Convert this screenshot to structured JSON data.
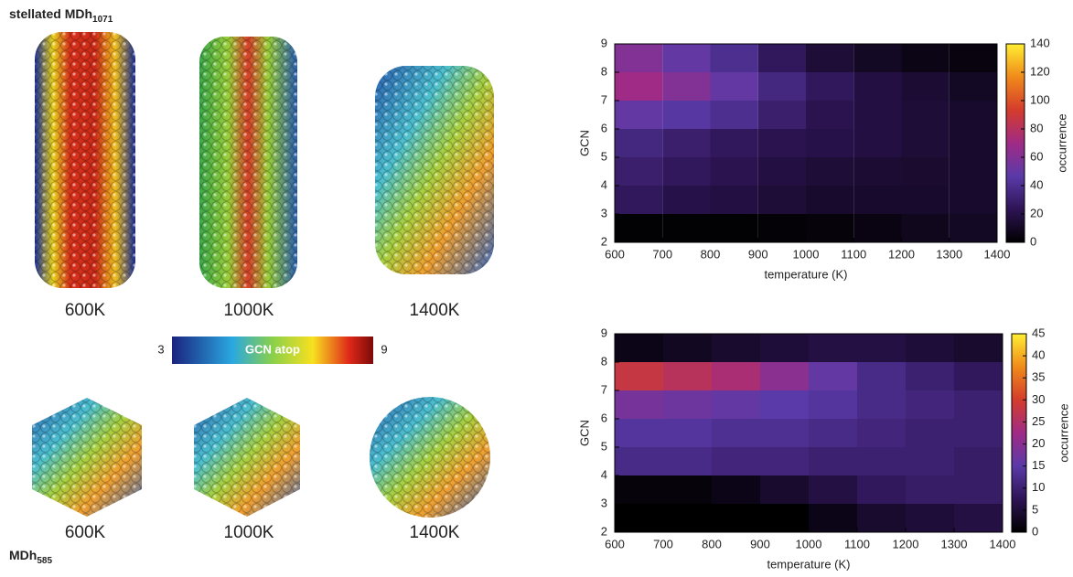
{
  "particles": {
    "top_title": "stellated MDh",
    "top_title_sub": "1071",
    "bottom_title": "MDh",
    "bottom_title_sub": "585",
    "top_labels": [
      "600K",
      "1000K",
      "1400K"
    ],
    "bottom_labels": [
      "600K",
      "1000K",
      "1400K"
    ],
    "scale": {
      "min": "3",
      "label": "GCN atop",
      "max": "9"
    }
  },
  "chart_data": [
    {
      "type": "heatmap",
      "xlabel": "temperature (K)",
      "ylabel": "GCN",
      "colorbar_label": "occurrence",
      "x_bins": [
        600,
        700,
        800,
        900,
        1000,
        1100,
        1200,
        1300,
        1400
      ],
      "y_bins": [
        2,
        3,
        4,
        5,
        6,
        7,
        8,
        9
      ],
      "values": [
        [
          1,
          1,
          1,
          2,
          3,
          5,
          8,
          10
        ],
        [
          25,
          20,
          18,
          15,
          12,
          12,
          12,
          12
        ],
        [
          30,
          25,
          22,
          18,
          15,
          14,
          13,
          12
        ],
        [
          35,
          30,
          25,
          22,
          20,
          18,
          15,
          12
        ],
        [
          50,
          45,
          40,
          30,
          22,
          18,
          15,
          12
        ],
        [
          70,
          60,
          50,
          35,
          25,
          18,
          14,
          10
        ],
        [
          60,
          50,
          40,
          25,
          15,
          10,
          6,
          4
        ]
      ],
      "xlim": [
        600,
        1400
      ],
      "xticks": [
        600,
        700,
        800,
        900,
        1000,
        1100,
        1200,
        1300,
        1400
      ],
      "ylim": [
        2,
        9
      ],
      "yticks": [
        2,
        3,
        4,
        5,
        6,
        7,
        8,
        9
      ],
      "zlim": [
        0,
        140
      ],
      "zticks": [
        0,
        20,
        40,
        60,
        80,
        100,
        120,
        140
      ],
      "colormap": [
        "#000000",
        "#2e1455",
        "#5a3aa8",
        "#a02b86",
        "#d43c2c",
        "#f08a1a",
        "#ffee33"
      ]
    },
    {
      "type": "heatmap",
      "xlabel": "temperature (K)",
      "ylabel": "GCN",
      "colorbar_label": "occurrence",
      "x_bins": [
        600,
        700,
        800,
        900,
        1000,
        1100,
        1200,
        1300,
        1400
      ],
      "y_bins": [
        2,
        3,
        4,
        5,
        6,
        7,
        8,
        9
      ],
      "values": [
        [
          0,
          0,
          0,
          0,
          2,
          4,
          5,
          6
        ],
        [
          1,
          1,
          2,
          4,
          6,
          8,
          9,
          9
        ],
        [
          12,
          12,
          11,
          11,
          10,
          10,
          10,
          9
        ],
        [
          14,
          14,
          13,
          13,
          12,
          11,
          10,
          10
        ],
        [
          18,
          17,
          16,
          15,
          14,
          12,
          11,
          10
        ],
        [
          28,
          26,
          24,
          20,
          16,
          12,
          10,
          8
        ],
        [
          2,
          3,
          4,
          5,
          6,
          6,
          5,
          4
        ]
      ],
      "xlim": [
        600,
        1400
      ],
      "xticks": [
        600,
        700,
        800,
        900,
        1000,
        1100,
        1200,
        1300,
        1400
      ],
      "ylim": [
        2,
        9
      ],
      "yticks": [
        2,
        3,
        4,
        5,
        6,
        7,
        8,
        9
      ],
      "zlim": [
        0,
        45
      ],
      "zticks": [
        0,
        5,
        10,
        15,
        20,
        25,
        30,
        35,
        40,
        45
      ],
      "colormap": [
        "#000000",
        "#2e1455",
        "#5a3aa8",
        "#a02b86",
        "#d43c2c",
        "#f08a1a",
        "#ffee33"
      ]
    }
  ]
}
